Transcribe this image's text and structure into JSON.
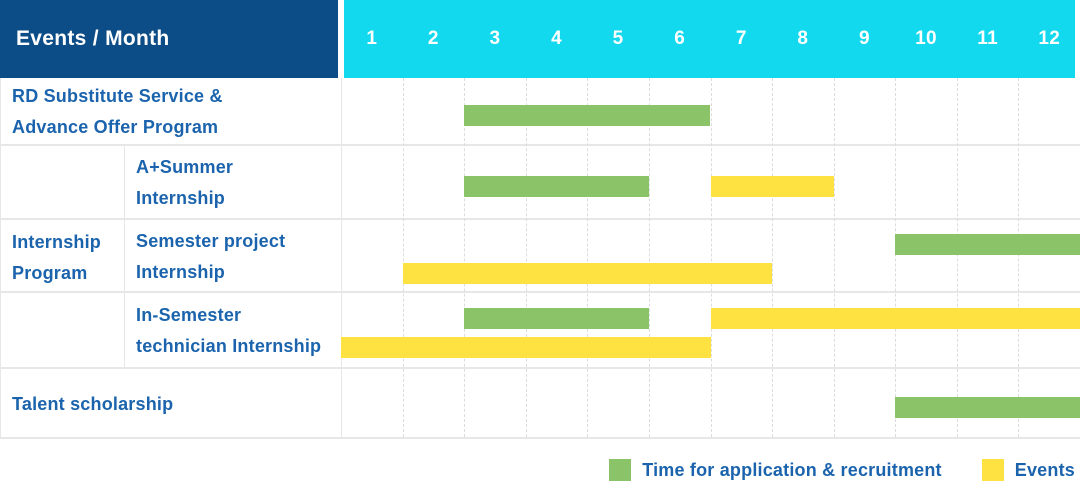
{
  "header": {
    "title": "Events / Month",
    "months": [
      "1",
      "2",
      "3",
      "4",
      "5",
      "6",
      "7",
      "8",
      "9",
      "10",
      "11",
      "12"
    ]
  },
  "colors": {
    "header_bg": "#0d4d87",
    "months_bg": "#12d9ed",
    "header_text": "#ffffff",
    "label_text": "#1b64ad",
    "recruitment": "#8bc368",
    "events": "#fde241",
    "grid_line": "#e7e7e7",
    "grid_dash": "#dcdcdc"
  },
  "group": {
    "label_lines": [
      "Internship",
      "Program"
    ]
  },
  "rows": [
    {
      "name": "rd-substitute-service-advance-offer-program",
      "label_lines": [
        "RD Substitute Service &",
        "Advance Offer Program"
      ],
      "bars": [
        {
          "type": "recruitment",
          "start": 3,
          "end": 6,
          "lane": "center"
        }
      ]
    },
    {
      "name": "a-plus-summer-internship",
      "label_lines": [
        "A+Summer",
        "Internship"
      ],
      "bars": [
        {
          "type": "recruitment",
          "start": 3,
          "end": 5,
          "lane": "center"
        },
        {
          "type": "events",
          "start": 7,
          "end": 8,
          "lane": "center"
        }
      ]
    },
    {
      "name": "semester-project-internship",
      "label_lines": [
        "Semester project",
        "Internship"
      ],
      "bars": [
        {
          "type": "recruitment",
          "start": 10,
          "end": 12,
          "lane": "top"
        },
        {
          "type": "events",
          "start": 2,
          "end": 7,
          "lane": "bottom"
        }
      ]
    },
    {
      "name": "in-semester-technician-internship",
      "label_lines": [
        "In-Semester",
        "technician Internship"
      ],
      "bars": [
        {
          "type": "recruitment",
          "start": 3,
          "end": 5,
          "lane": "top"
        },
        {
          "type": "events",
          "start": 7,
          "end": 12,
          "lane": "top"
        },
        {
          "type": "events",
          "start": 1,
          "end": 6,
          "lane": "bottom"
        }
      ]
    },
    {
      "name": "talent-scholarship",
      "label_lines": [
        "Talent scholarship"
      ],
      "bars": [
        {
          "type": "recruitment",
          "start": 10,
          "end": 12,
          "lane": "center"
        }
      ]
    }
  ],
  "legend": {
    "items": [
      {
        "type": "recruitment",
        "label": "Time for application & recruitment"
      },
      {
        "type": "events",
        "label": "Events"
      }
    ]
  },
  "chart_data": {
    "type": "bar",
    "variant": "gantt",
    "title": "Events / Month",
    "x": {
      "label": "Month",
      "ticks": [
        1,
        2,
        3,
        4,
        5,
        6,
        7,
        8,
        9,
        10,
        11,
        12
      ],
      "range": [
        1,
        12
      ]
    },
    "legend": [
      {
        "label": "Time for application & recruitment",
        "color": "#8bc368"
      },
      {
        "label": "Events",
        "color": "#fde241"
      }
    ],
    "tasks": [
      {
        "group": "",
        "name": "RD Substitute Service & Advance Offer Program",
        "recruitment_months": [
          [
            3,
            6
          ]
        ],
        "events_months": []
      },
      {
        "group": "Internship Program",
        "name": "A+Summer Internship",
        "recruitment_months": [
          [
            3,
            5
          ]
        ],
        "events_months": [
          [
            7,
            8
          ]
        ]
      },
      {
        "group": "Internship Program",
        "name": "Semester project Internship",
        "recruitment_months": [
          [
            10,
            12
          ]
        ],
        "events_months": [
          [
            2,
            7
          ]
        ]
      },
      {
        "group": "Internship Program",
        "name": "In-Semester technician Internship",
        "recruitment_months": [
          [
            3,
            5
          ]
        ],
        "events_months": [
          [
            1,
            6
          ],
          [
            7,
            12
          ]
        ]
      },
      {
        "group": "",
        "name": "Talent scholarship",
        "recruitment_months": [
          [
            10,
            12
          ]
        ],
        "events_months": []
      }
    ]
  }
}
